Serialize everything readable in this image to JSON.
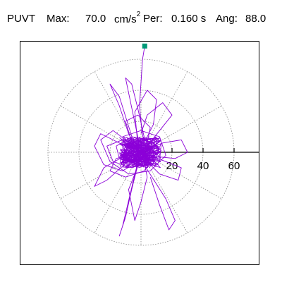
{
  "header": {
    "name": "PUVT",
    "max_label": "Max:",
    "max_value": "70.0",
    "max_unit_base": "cm/s",
    "max_unit_exp": "2",
    "per_label": "Per:",
    "per_value": "0.160 s",
    "ang_label": "Ang:",
    "ang_value": "88.0"
  },
  "colors": {
    "trace": "#8b00d8",
    "marker": "#009a78",
    "grid": "#888888",
    "axis": "#000000"
  },
  "chart_data": {
    "type": "polar-trace",
    "title": "",
    "max": 70.0,
    "max_unit": "cm/s^2",
    "period_s": 0.16,
    "angle_deg": 88.0,
    "radial_ticks": [
      20,
      40,
      60
    ],
    "radial_tick_labels": [
      "20",
      "40",
      "60"
    ],
    "grid_rings": [
      20,
      40,
      60
    ],
    "spoke_step_deg": 30,
    "grid": true,
    "peak_point": {
      "x": 2.4,
      "y": 68.5
    },
    "trace_segments": [
      [
        [
          2.4,
          68.5
        ],
        [
          1,
          60
        ],
        [
          0,
          45
        ],
        [
          -1,
          30
        ],
        [
          0.5,
          15
        ],
        [
          2,
          5
        ],
        [
          1,
          0
        ]
      ],
      [
        [
          0,
          3
        ],
        [
          -12,
          8
        ],
        [
          -22,
          4
        ],
        [
          -18,
          -6
        ],
        [
          -6,
          -10
        ],
        [
          6,
          -6
        ],
        [
          12,
          2
        ],
        [
          6,
          8
        ],
        [
          -6,
          10
        ],
        [
          -16,
          4
        ],
        [
          -14,
          -4
        ],
        [
          -2,
          -8
        ],
        [
          8,
          -2
        ],
        [
          4,
          6
        ]
      ],
      [
        [
          -2,
          2
        ],
        [
          -18,
          14
        ],
        [
          -26,
          8
        ],
        [
          -20,
          -6
        ],
        [
          -8,
          -14
        ],
        [
          6,
          -12
        ],
        [
          16,
          -2
        ],
        [
          12,
          10
        ],
        [
          0,
          14
        ],
        [
          -12,
          10
        ]
      ],
      [
        [
          -4,
          4
        ],
        [
          -14,
          36
        ],
        [
          -20,
          44
        ],
        [
          -14,
          30
        ],
        [
          -8,
          12
        ],
        [
          -2,
          0
        ]
      ],
      [
        [
          0,
          0
        ],
        [
          -10,
          48
        ],
        [
          -6,
          44
        ],
        [
          -2,
          28
        ],
        [
          2,
          10
        ]
      ],
      [
        [
          2,
          -2
        ],
        [
          22,
          -4
        ],
        [
          30,
          0
        ],
        [
          26,
          8
        ],
        [
          14,
          6
        ],
        [
          4,
          2
        ]
      ],
      [
        [
          0,
          -4
        ],
        [
          -8,
          -24
        ],
        [
          -4,
          -44
        ],
        [
          0,
          -32
        ],
        [
          4,
          -16
        ],
        [
          2,
          -6
        ]
      ],
      [
        [
          -2,
          -6
        ],
        [
          -12,
          -48
        ],
        [
          -14,
          -54
        ],
        [
          -10,
          -42
        ],
        [
          -6,
          -24
        ],
        [
          -2,
          -8
        ]
      ],
      [
        [
          2,
          -8
        ],
        [
          16,
          -30
        ],
        [
          22,
          -44
        ],
        [
          18,
          -50
        ],
        [
          12,
          -34
        ],
        [
          6,
          -16
        ]
      ],
      [
        [
          -6,
          2
        ],
        [
          -26,
          12
        ],
        [
          -30,
          4
        ],
        [
          -24,
          -8
        ],
        [
          -12,
          -12
        ],
        [
          2,
          -4
        ]
      ],
      [
        [
          4,
          4
        ],
        [
          20,
          24
        ],
        [
          14,
          32
        ],
        [
          4,
          24
        ],
        [
          0,
          12
        ]
      ],
      [
        [
          -4,
          -2
        ],
        [
          -22,
          -18
        ],
        [
          -30,
          -22
        ],
        [
          -24,
          -10
        ],
        [
          -10,
          -2
        ]
      ],
      [
        [
          6,
          -2
        ],
        [
          26,
          -10
        ],
        [
          24,
          -18
        ],
        [
          12,
          -14
        ],
        [
          4,
          -6
        ]
      ],
      [
        [
          -2,
          4
        ],
        [
          -4,
          26
        ],
        [
          4,
          40
        ],
        [
          10,
          34
        ],
        [
          8,
          18
        ],
        [
          2,
          6
        ]
      ],
      [
        [
          0,
          0
        ],
        [
          -16,
          -4
        ],
        [
          -20,
          -12
        ],
        [
          -10,
          -16
        ],
        [
          2,
          -12
        ],
        [
          8,
          -4
        ],
        [
          4,
          4
        ]
      ],
      [
        [
          -4,
          0
        ],
        [
          -10,
          20
        ],
        [
          -2,
          24
        ],
        [
          6,
          16
        ],
        [
          4,
          6
        ]
      ]
    ],
    "dense_core": {
      "x_range": [
        -14,
        14
      ],
      "y_range": [
        -10,
        10
      ]
    }
  }
}
